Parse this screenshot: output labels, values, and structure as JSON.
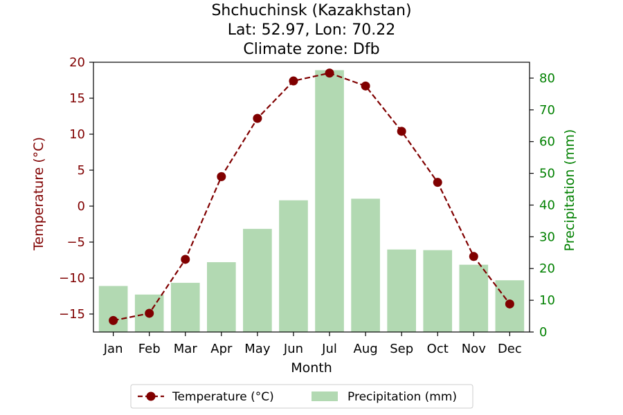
{
  "chart_data": {
    "type": "bar+line",
    "title_lines": [
      "Shchuchinsk (Kazakhstan)",
      "Lat: 52.97, Lon: 70.22",
      "Climate zone: Dfb"
    ],
    "xlabel": "Month",
    "categories": [
      "Jan",
      "Feb",
      "Mar",
      "Apr",
      "May",
      "Jun",
      "Jul",
      "Aug",
      "Sep",
      "Oct",
      "Nov",
      "Dec"
    ],
    "temperature": {
      "name": "Temperature (°C)",
      "axis_label": "Temperature (°C)",
      "values": [
        -15.9,
        -14.9,
        -7.4,
        4.1,
        12.2,
        17.4,
        18.5,
        16.7,
        10.4,
        3.3,
        -7.0,
        -13.6
      ],
      "ylim": [
        -17.5,
        20
      ],
      "ticks": [
        -15,
        -10,
        -5,
        0,
        5,
        10,
        15,
        20
      ],
      "color": "#800000",
      "style": "dashed line with circle markers"
    },
    "precipitation": {
      "name": "Precipitation (mm)",
      "axis_label": "Precipitation (mm)",
      "values": [
        14.5,
        11.8,
        15.5,
        22.0,
        32.5,
        41.5,
        82.5,
        42.0,
        26.0,
        25.8,
        21.2,
        16.3
      ],
      "ylim": [
        0,
        85
      ],
      "ticks": [
        0,
        10,
        20,
        30,
        40,
        50,
        60,
        70,
        80
      ],
      "color": "#b2d9b2",
      "style": "bars"
    },
    "axis_colors": {
      "temperature": "#800000",
      "precipitation": "#008000"
    },
    "grid": false,
    "legend_position": "bottom-center"
  }
}
